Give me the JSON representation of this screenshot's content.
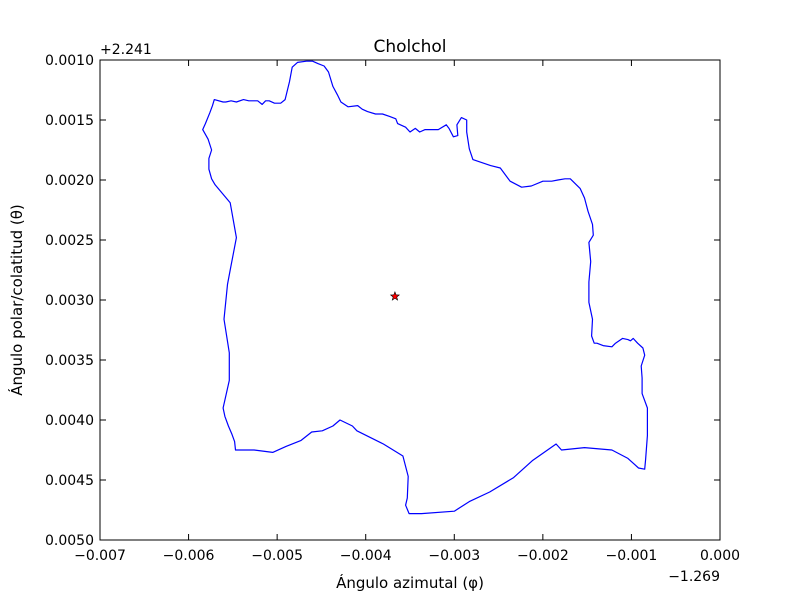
{
  "chart_data": {
    "type": "line",
    "title": "Cholchol",
    "xlabel": "Ángulo azimutal (φ)",
    "ylabel": "Ángulo polar/colatitud (θ)",
    "x_offset_label": "−1.269",
    "y_offset_label": "+2.241",
    "x_offset": -1.269,
    "y_offset": 2.241,
    "xlim": [
      -0.007,
      0.0
    ],
    "ylim": [
      0.005,
      0.001
    ],
    "y_inverted": true,
    "x_ticks": [
      -0.007,
      -0.006,
      -0.005,
      -0.004,
      -0.003,
      -0.002,
      -0.001,
      0.0
    ],
    "x_tick_labels": [
      "−0.007",
      "−0.006",
      "−0.005",
      "−0.004",
      "−0.003",
      "−0.002",
      "−0.001",
      "0.000"
    ],
    "y_ticks": [
      0.001,
      0.0015,
      0.002,
      0.0025,
      0.003,
      0.0035,
      0.004,
      0.0045,
      0.005
    ],
    "y_tick_labels": [
      "0.0010",
      "0.0015",
      "0.0020",
      "0.0025",
      "0.0030",
      "0.0035",
      "0.0040",
      "0.0045",
      "0.0050"
    ],
    "grid": false,
    "line_color": "#0000ff",
    "marker_color": "#ff0000",
    "series": [
      {
        "points": [
          [
            -0.00467,
            0.00101
          ],
          [
            -0.00477,
            0.00102
          ],
          [
            -0.00483,
            0.00106
          ],
          [
            -0.00486,
            0.00118
          ],
          [
            -0.00491,
            0.00133
          ],
          [
            -0.00496,
            0.00136
          ],
          [
            -0.00503,
            0.00136
          ],
          [
            -0.00509,
            0.00134
          ],
          [
            -0.00513,
            0.00134
          ],
          [
            -0.00517,
            0.00137
          ],
          [
            -0.00522,
            0.00134
          ],
          [
            -0.00532,
            0.00134
          ],
          [
            -0.00538,
            0.00133
          ],
          [
            -0.00546,
            0.00135
          ],
          [
            -0.00552,
            0.00134
          ],
          [
            -0.00558,
            0.00135
          ],
          [
            -0.00561,
            0.00135
          ],
          [
            -0.00571,
            0.00133
          ],
          [
            -0.00573,
            0.00138
          ],
          [
            -0.00576,
            0.00144
          ],
          [
            -0.00581,
            0.00153
          ],
          [
            -0.00584,
            0.00158
          ],
          [
            -0.00578,
            0.00166
          ],
          [
            -0.00574,
            0.00175
          ],
          [
            -0.00577,
            0.00182
          ],
          [
            -0.00577,
            0.00191
          ],
          [
            -0.00574,
            0.00199
          ],
          [
            -0.0057,
            0.00204
          ],
          [
            -0.00553,
            0.00219
          ],
          [
            -0.00546,
            0.00248
          ],
          [
            -0.00553,
            0.00275
          ],
          [
            -0.00556,
            0.00287
          ],
          [
            -0.0056,
            0.00316
          ],
          [
            -0.00554,
            0.00344
          ],
          [
            -0.00554,
            0.00367
          ],
          [
            -0.00561,
            0.0039
          ],
          [
            -0.00559,
            0.00397
          ],
          [
            -0.00555,
            0.00405
          ],
          [
            -0.00551,
            0.00412
          ],
          [
            -0.00548,
            0.00418
          ],
          [
            -0.00547,
            0.00425
          ],
          [
            -0.00526,
            0.00425
          ],
          [
            -0.00505,
            0.00427
          ],
          [
            -0.0049,
            0.00422
          ],
          [
            -0.00473,
            0.00417
          ],
          [
            -0.00461,
            0.0041
          ],
          [
            -0.00449,
            0.00409
          ],
          [
            -0.00437,
            0.00405
          ],
          [
            -0.00429,
            0.004
          ],
          [
            -0.00415,
            0.00405
          ],
          [
            -0.0041,
            0.00409
          ],
          [
            -0.0038,
            0.0042
          ],
          [
            -0.00358,
            0.0043
          ],
          [
            -0.00352,
            0.00447
          ],
          [
            -0.00353,
            0.00465
          ],
          [
            -0.00355,
            0.00471
          ],
          [
            -0.00351,
            0.00478
          ],
          [
            -0.00337,
            0.00478
          ],
          [
            -0.003,
            0.00476
          ],
          [
            -0.00283,
            0.00468
          ],
          [
            -0.0026,
            0.0046
          ],
          [
            -0.00233,
            0.00448
          ],
          [
            -0.00212,
            0.00434
          ],
          [
            -0.00185,
            0.0042
          ],
          [
            -0.00179,
            0.00425
          ],
          [
            -0.00153,
            0.00423
          ],
          [
            -0.00122,
            0.00425
          ],
          [
            -0.00104,
            0.00432
          ],
          [
            -0.00092,
            0.0044
          ],
          [
            -0.00085,
            0.00441
          ],
          [
            -0.00084,
            0.00433
          ],
          [
            -0.00082,
            0.00413
          ],
          [
            -0.00082,
            0.0039
          ],
          [
            -0.00088,
            0.00378
          ],
          [
            -0.00088,
            0.00365
          ],
          [
            -0.00089,
            0.00355
          ],
          [
            -0.00085,
            0.00346
          ],
          [
            -0.00087,
            0.0034
          ],
          [
            -0.00093,
            0.00336
          ],
          [
            -0.00098,
            0.00332
          ],
          [
            -0.00101,
            0.00334
          ],
          [
            -0.00104,
            0.00333
          ],
          [
            -0.0011,
            0.00332
          ],
          [
            -0.00118,
            0.00336
          ],
          [
            -0.00122,
            0.00339
          ],
          [
            -0.00132,
            0.00338
          ],
          [
            -0.00139,
            0.00336
          ],
          [
            -0.00142,
            0.00336
          ],
          [
            -0.00145,
            0.0033
          ],
          [
            -0.00144,
            0.00316
          ],
          [
            -0.00148,
            0.00302
          ],
          [
            -0.00148,
            0.00285
          ],
          [
            -0.00146,
            0.00268
          ],
          [
            -0.00148,
            0.00252
          ],
          [
            -0.00143,
            0.00246
          ],
          [
            -0.00144,
            0.00237
          ],
          [
            -0.00149,
            0.00226
          ],
          [
            -0.00153,
            0.00215
          ],
          [
            -0.00158,
            0.00207
          ],
          [
            -0.00169,
            0.00199
          ],
          [
            -0.00175,
            0.00199
          ],
          [
            -0.00183,
            0.002
          ],
          [
            -0.0019,
            0.00201
          ],
          [
            -0.002,
            0.00201
          ],
          [
            -0.00213,
            0.00205
          ],
          [
            -0.00224,
            0.00206
          ],
          [
            -0.00237,
            0.00201
          ],
          [
            -0.00248,
            0.0019
          ],
          [
            -0.00259,
            0.00188
          ],
          [
            -0.00279,
            0.00183
          ],
          [
            -0.00283,
            0.00174
          ],
          [
            -0.00286,
            0.0016
          ],
          [
            -0.00286,
            0.0015
          ],
          [
            -0.00292,
            0.00148
          ],
          [
            -0.00297,
            0.00154
          ],
          [
            -0.00296,
            0.00163
          ],
          [
            -0.00301,
            0.00164
          ],
          [
            -0.00306,
            0.00157
          ],
          [
            -0.00309,
            0.00154
          ],
          [
            -0.00318,
            0.00158
          ],
          [
            -0.00326,
            0.00158
          ],
          [
            -0.00333,
            0.00158
          ],
          [
            -0.00339,
            0.0016
          ],
          [
            -0.00344,
            0.00157
          ],
          [
            -0.0035,
            0.0016
          ],
          [
            -0.00355,
            0.00156
          ],
          [
            -0.00364,
            0.00153
          ],
          [
            -0.00366,
            0.00149
          ],
          [
            -0.00373,
            0.00147
          ],
          [
            -0.00381,
            0.00145
          ],
          [
            -0.00389,
            0.00145
          ],
          [
            -0.00398,
            0.00143
          ],
          [
            -0.00404,
            0.00141
          ],
          [
            -0.00409,
            0.00138
          ],
          [
            -0.0042,
            0.00139
          ],
          [
            -0.00428,
            0.00135
          ],
          [
            -0.00432,
            0.00129
          ],
          [
            -0.00437,
            0.00122
          ],
          [
            -0.00442,
            0.0011
          ],
          [
            -0.00447,
            0.00105
          ],
          [
            -0.00454,
            0.00103
          ],
          [
            -0.0046,
            0.00101
          ],
          [
            -0.00467,
            0.00101
          ]
        ]
      }
    ],
    "marker": {
      "x": -0.00367,
      "y": 0.00297,
      "shape": "star"
    }
  }
}
